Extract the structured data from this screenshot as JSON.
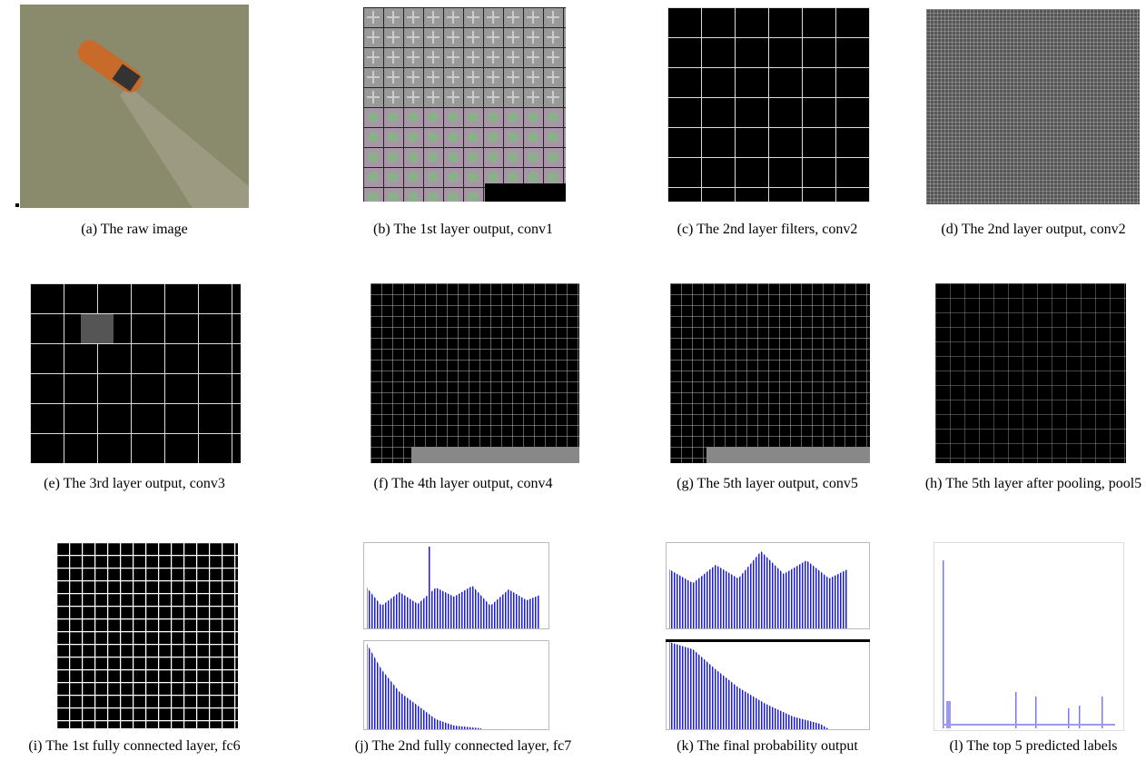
{
  "figure": {
    "panels": [
      {
        "caption": "(a) The raw image"
      },
      {
        "caption": "(b) The 1st layer output, conv1"
      },
      {
        "caption": "(c) The 2nd layer filters, conv2"
      },
      {
        "caption": "(d) The 2nd layer output, conv2"
      },
      {
        "caption": "(e) The 3rd layer output, conv3"
      },
      {
        "caption": "(f) The 4th layer output, conv4"
      },
      {
        "caption": "(g) The 5th layer output, conv5"
      },
      {
        "caption": "(h) The 5th layer after pooling, pool5"
      },
      {
        "caption": "(i) The 1st fully connected layer, fc6"
      },
      {
        "caption": "(j) The 2nd fully connected layer, fc7"
      },
      {
        "caption": "(k) The final probability output"
      },
      {
        "caption": "(l) The top 5 predicted labels"
      }
    ]
  }
}
